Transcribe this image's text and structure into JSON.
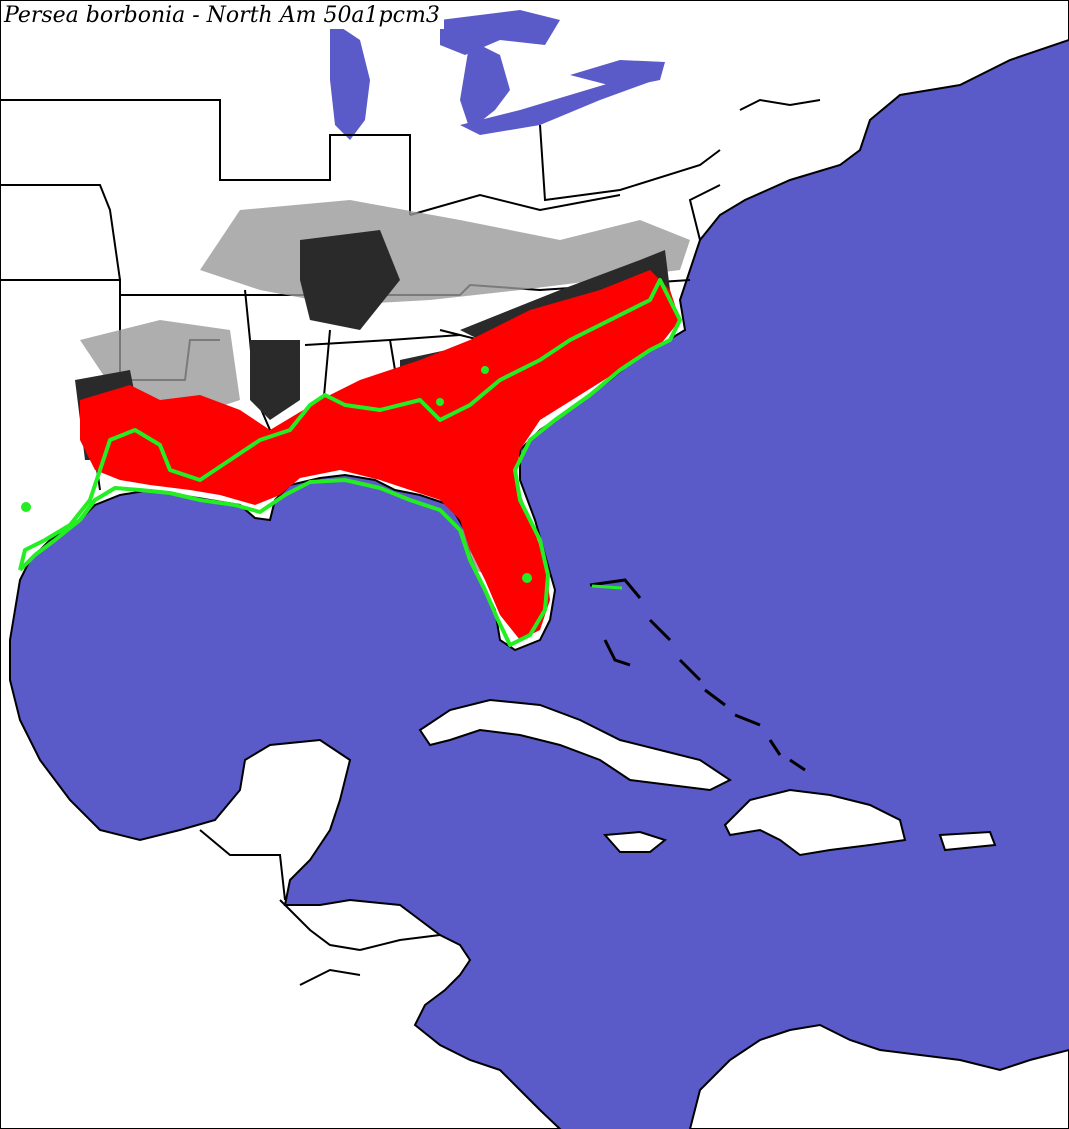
{
  "title": "Persea borbonia - North Am 50a1pcm3",
  "colors": {
    "water": "#5a5ac8",
    "land": "#ffffff",
    "borders": "#000000",
    "suitability_high": "#ff0000",
    "suitability_moderate": "#2a2a2a",
    "suitability_low": "#9a9a9a",
    "range_outline": "#22ee22"
  },
  "layers": [
    "water",
    "land",
    "state-borders",
    "climate-suitability",
    "species-range-outline"
  ]
}
